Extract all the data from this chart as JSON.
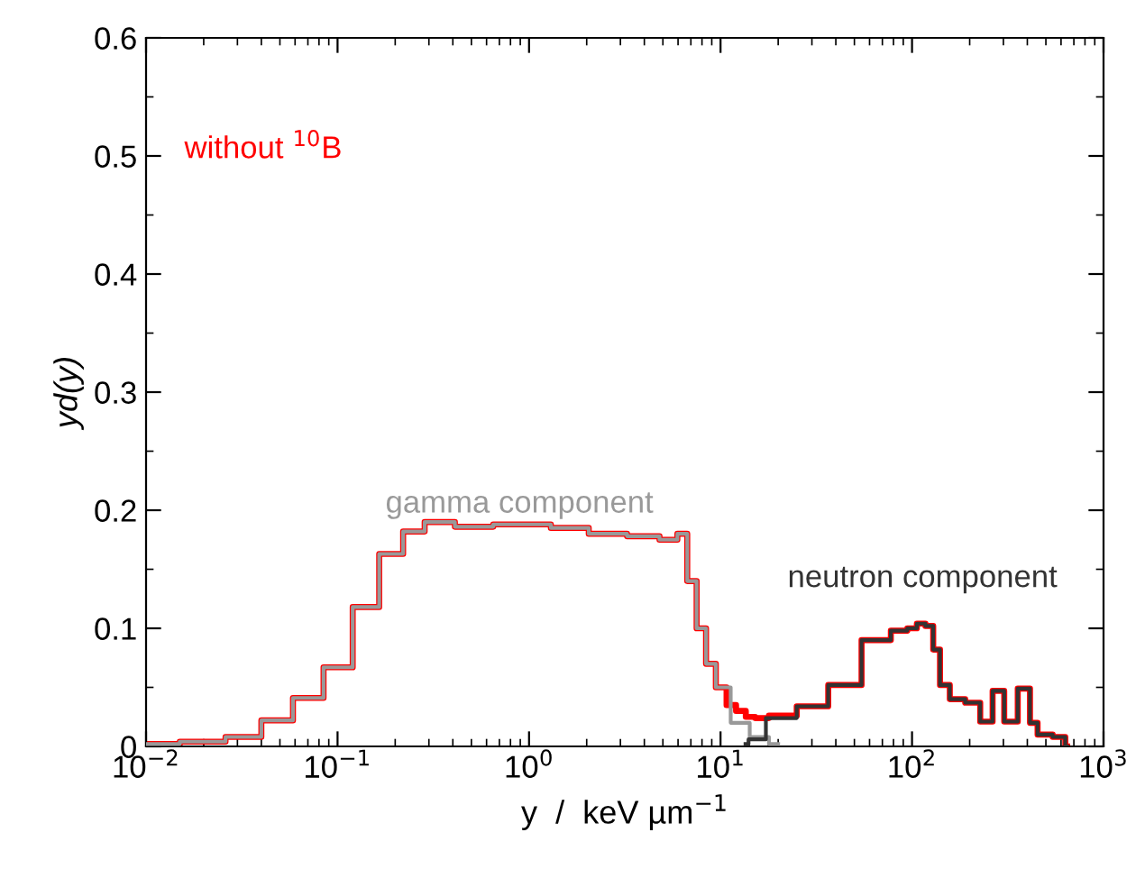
{
  "chart_data": {
    "type": "step",
    "xlabel": "y  /  keV µm$^{−1}$",
    "ylabel": "yd(y)",
    "log": "x",
    "xlim": [
      0.01,
      1000
    ],
    "xticks": [
      {
        "value": 0.01,
        "label": "10$^{−2}$"
      },
      {
        "value": 0.1,
        "label": "10$^{−1}$"
      },
      {
        "value": 1,
        "label": "10$^{0}$"
      },
      {
        "value": 10,
        "label": "10$^{1}$"
      },
      {
        "value": 100,
        "label": "10$^{2}$"
      },
      {
        "value": 1000,
        "label": "10$^{3}$"
      }
    ],
    "ylim": [
      0,
      0.6
    ],
    "yticks": [
      0,
      0.1,
      0.2,
      0.3,
      0.4,
      0.5,
      0.6
    ],
    "grid": false,
    "legend": false,
    "series": [
      {
        "name": "without $^{10}$B",
        "color": "#ff0000",
        "x": [
          0.01,
          0.02,
          0.032,
          0.048,
          0.069,
          0.1,
          0.14,
          0.19,
          0.25,
          0.32,
          0.5,
          0.8,
          1.0,
          1.6,
          2.5,
          4.0,
          5.6,
          6.3,
          7.1,
          7.9,
          8.9,
          10,
          11.5,
          12.6,
          14.5,
          15.8,
          20,
          30,
          43,
          66,
          89,
          100,
          112,
          123,
          135,
          145,
          170,
          209,
          245,
          282,
          324,
          389,
          437,
          468,
          617,
          646
        ],
        "values": [
          0.002,
          0.004,
          0.008,
          0.022,
          0.041,
          0.067,
          0.118,
          0.163,
          0.182,
          0.19,
          0.186,
          0.188,
          0.188,
          0.185,
          0.18,
          0.178,
          0.175,
          0.18,
          0.14,
          0.1,
          0.07,
          0.05,
          0.035,
          0.03,
          0.025,
          0.024,
          0.026,
          0.034,
          0.052,
          0.09,
          0.098,
          0.1,
          0.104,
          0.102,
          0.082,
          0.052,
          0.04,
          0.037,
          0.021,
          0.047,
          0.021,
          0.049,
          0.02,
          0.01,
          0.008,
          0
        ]
      },
      {
        "name": "gamma component",
        "color": "#999999",
        "x": [
          0.01,
          0.02,
          0.032,
          0.048,
          0.069,
          0.1,
          0.14,
          0.19,
          0.25,
          0.32,
          0.5,
          0.8,
          1.0,
          1.6,
          2.5,
          4.0,
          5.6,
          6.3,
          7.1,
          7.9,
          8.9,
          10,
          12.6,
          15.8,
          20
        ],
        "values": [
          0.002,
          0.004,
          0.008,
          0.022,
          0.041,
          0.067,
          0.118,
          0.163,
          0.182,
          0.19,
          0.186,
          0.188,
          0.188,
          0.185,
          0.18,
          0.178,
          0.175,
          0.18,
          0.14,
          0.1,
          0.07,
          0.05,
          0.02,
          0.008,
          0.002
        ]
      },
      {
        "name": "neutron component",
        "color": "#333333",
        "x": [
          13.5,
          14.5,
          20,
          30,
          43,
          66,
          89,
          100,
          112,
          123,
          135,
          145,
          170,
          209,
          245,
          282,
          324,
          389,
          437,
          468,
          617,
          646
        ],
        "values": [
          0.002,
          0.006,
          0.024,
          0.034,
          0.052,
          0.09,
          0.098,
          0.1,
          0.104,
          0.102,
          0.082,
          0.052,
          0.04,
          0.037,
          0.021,
          0.047,
          0.021,
          0.049,
          0.02,
          0.01,
          0.008,
          0
        ]
      }
    ]
  }
}
